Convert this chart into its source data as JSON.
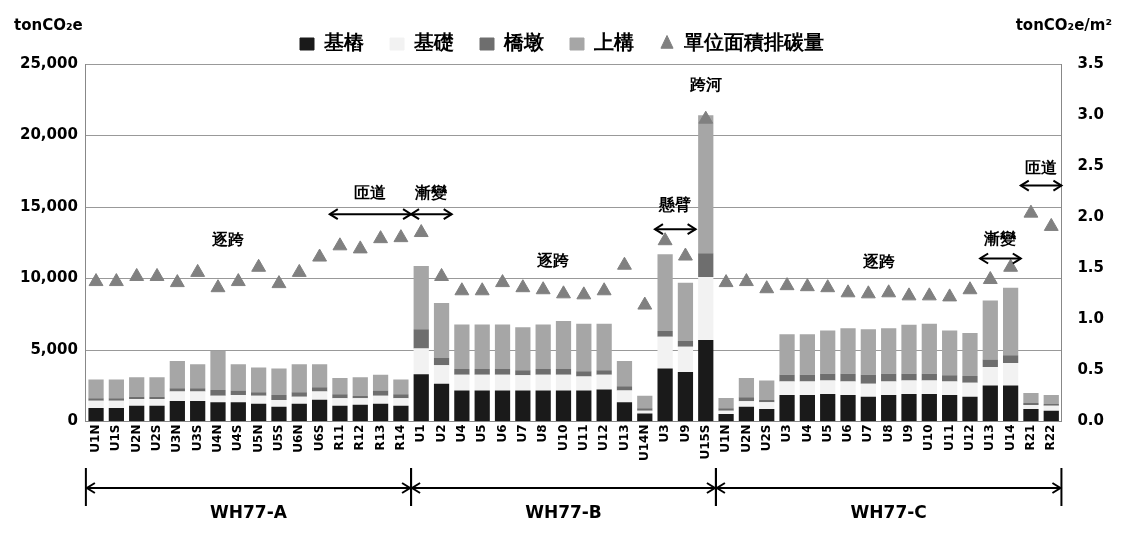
{
  "chart_data": {
    "type": "bar",
    "stacked": true,
    "ylabel": "tonCO₂e",
    "y2label": "tonCO₂e/m²",
    "categories": [
      "U1N",
      "U1S",
      "U2N",
      "U2S",
      "U3N",
      "U3S",
      "U4N",
      "U4S",
      "U5N",
      "U5S",
      "U6N",
      "U6S",
      "R11",
      "R12",
      "R13",
      "R14",
      "U1",
      "U2",
      "U4",
      "U5",
      "U6",
      "U7",
      "U8",
      "U10",
      "U11",
      "U12",
      "U13",
      "U14N",
      "U3",
      "U9",
      "U15S",
      "U1N",
      "U2N",
      "U2S",
      "U3",
      "U4",
      "U5",
      "U6",
      "U7",
      "U8",
      "U9",
      "U10",
      "U11",
      "U12",
      "U13",
      "U14",
      "R21",
      "R22"
    ],
    "series": [
      {
        "name": "基樁",
        "color": "#1a1a1a",
        "values": [
          940,
          940,
          1100,
          1100,
          1440,
          1440,
          1340,
          1340,
          1250,
          1030,
          1250,
          1530,
          1100,
          1180,
          1250,
          1100,
          3300,
          2640,
          2170,
          2170,
          2170,
          2170,
          2170,
          2170,
          2170,
          2240,
          1340,
          560,
          3700,
          3460,
          5700,
          520,
          1040,
          870,
          1860,
          1860,
          1930,
          1860,
          1740,
          1860,
          1930,
          1930,
          1860,
          1740,
          2520,
          2520,
          870,
          750
        ]
      },
      {
        "name": "基礎",
        "color": "#f2f2f2",
        "values": [
          520,
          520,
          480,
          480,
          660,
          660,
          470,
          520,
          560,
          470,
          490,
          570,
          520,
          440,
          560,
          520,
          1810,
          1290,
          1100,
          1100,
          1100,
          1060,
          1100,
          1100,
          980,
          1030,
          830,
          190,
          2230,
          1770,
          4400,
          230,
          370,
          470,
          940,
          940,
          940,
          940,
          900,
          940,
          940,
          940,
          940,
          970,
          1290,
          1580,
          280,
          360
        ]
      },
      {
        "name": "橋墩",
        "color": "#6e6e6e",
        "values": [
          160,
          160,
          160,
          160,
          230,
          230,
          400,
          310,
          240,
          360,
          310,
          300,
          280,
          170,
          360,
          280,
          1340,
          520,
          410,
          410,
          410,
          350,
          410,
          410,
          360,
          310,
          300,
          170,
          400,
          400,
          1670,
          170,
          280,
          170,
          470,
          470,
          470,
          540,
          630,
          540,
          470,
          470,
          430,
          470,
          520,
          540,
          140,
          110
        ]
      },
      {
        "name": "上構",
        "color": "#a6a6a6",
        "values": [
          1320,
          1320,
          1360,
          1360,
          1910,
          1670,
          2730,
          1830,
          1720,
          1840,
          1950,
          1600,
          1140,
          1310,
          1100,
          1040,
          4430,
          3840,
          3110,
          3110,
          3110,
          3010,
          3110,
          3340,
          3320,
          3250,
          1770,
          890,
          5370,
          4070,
          9650,
          730,
          1350,
          1360,
          2830,
          2830,
          3020,
          3180,
          3180,
          3180,
          3420,
          3490,
          3130,
          3010,
          4140,
          4710,
          710,
          640
        ]
      },
      {
        "name": "單位面積排碳量",
        "type": "scatter",
        "axis": "y2",
        "color": "#808080",
        "values": [
          1.37,
          1.37,
          1.42,
          1.42,
          1.36,
          1.46,
          1.31,
          1.37,
          1.51,
          1.35,
          1.46,
          1.61,
          1.72,
          1.69,
          1.79,
          1.8,
          1.85,
          1.42,
          1.28,
          1.28,
          1.36,
          1.31,
          1.29,
          1.25,
          1.24,
          1.28,
          1.53,
          1.14,
          1.77,
          1.62,
          2.96,
          1.36,
          1.37,
          1.3,
          1.33,
          1.32,
          1.31,
          1.26,
          1.25,
          1.26,
          1.23,
          1.23,
          1.22,
          1.29,
          1.39,
          1.51,
          2.04,
          1.91
        ]
      }
    ],
    "ylim": [
      0,
      25000
    ],
    "yticks": [
      {
        "value": 0,
        "label": "0"
      },
      {
        "value": 5000,
        "label": "5,000"
      },
      {
        "value": 10000,
        "label": "10,000"
      },
      {
        "value": 15000,
        "label": "15,000"
      },
      {
        "value": 20000,
        "label": "20,000"
      },
      {
        "value": 25000,
        "label": "25,000"
      }
    ],
    "y2lim": [
      0,
      3.5
    ],
    "y2ticks": [
      {
        "value": 0,
        "label": "0.0"
      },
      {
        "value": 0.5,
        "label": "0.5"
      },
      {
        "value": 1,
        "label": "1.0"
      },
      {
        "value": 1.5,
        "label": "1.5"
      },
      {
        "value": 2,
        "label": "2.0"
      },
      {
        "value": 2.5,
        "label": "2.5"
      },
      {
        "value": 3,
        "label": "3.0"
      },
      {
        "value": 3.5,
        "label": "3.5"
      }
    ],
    "grid": "y",
    "legend": "top",
    "marker": "triangle",
    "annotations": [
      "逐跨",
      "匝道",
      "漸變",
      "逐跨",
      "懸臂",
      "跨河",
      "逐跨",
      "漸變",
      "匝道",
      "WH77-A",
      "WH77-B",
      "WH77-C"
    ]
  }
}
